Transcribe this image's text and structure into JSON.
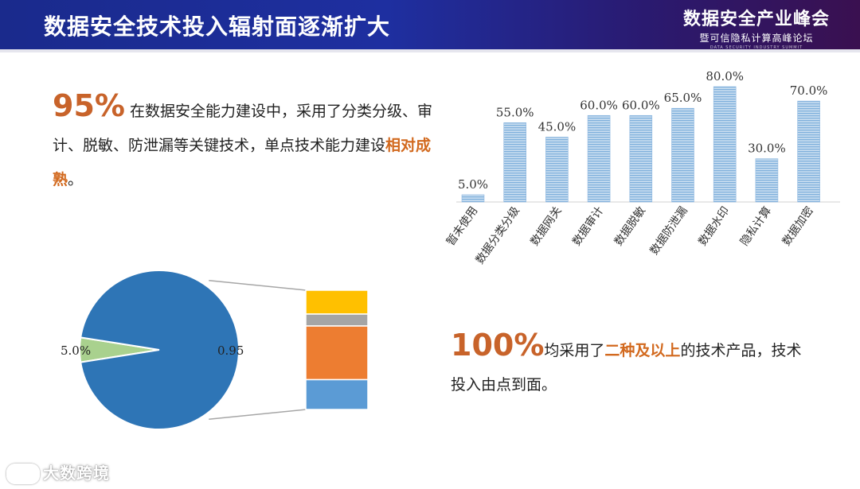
{
  "header": {
    "title": "数据安全技术投入辐射面逐渐扩大",
    "brand_main": "数据安全产业峰会",
    "brand_sub": "暨可信隐私计算高峰论坛",
    "brand_en": "DATA SECURITY INDUSTRY SUMMIT"
  },
  "para1": {
    "big": "95%",
    "text_a": " 在数据安全能力建设中，采用了分类分级、审计、脱敏、防泄漏等关键技术，单点技术能力建设",
    "highlight": "相对成熟",
    "text_b": "。"
  },
  "para2": {
    "big": "100%",
    "text_a": "均采用了",
    "highlight": "二种及以上",
    "text_b": "的技术产品，技术投入由点到面。"
  },
  "watermark": "大数跨境",
  "colors": {
    "bar": "#9dc3e6",
    "pie_main": "#2e75b6",
    "pie_small": "#a9d18e",
    "stack_yellow": "#ffc000",
    "stack_gray": "#a5a5a5",
    "stack_orange": "#ed7d31",
    "stack_blue": "#5b9bd5",
    "accent": "#c8632a"
  },
  "chart_data": [
    {
      "type": "bar",
      "categories": [
        "暂未使用",
        "数据分类分级",
        "数据网关",
        "数据审计",
        "数据脱敏",
        "数据防泄漏",
        "数据水印",
        "隐私计算",
        "数据加密"
      ],
      "values": [
        5.0,
        55.0,
        45.0,
        60.0,
        60.0,
        65.0,
        80.0,
        30.0,
        70.0
      ],
      "data_labels": [
        "5.0%",
        "55.0%",
        "45.0%",
        "60.0%",
        "60.0%",
        "65.0%",
        "80.0%",
        "30.0%",
        "70.0%"
      ],
      "ylim": [
        0,
        80
      ]
    },
    {
      "type": "pie",
      "labels": [
        "5.0%",
        "0.95"
      ],
      "values": [
        0.05,
        0.95
      ],
      "breakdown_stack": [
        0.2,
        0.1,
        0.45,
        0.25
      ]
    }
  ]
}
